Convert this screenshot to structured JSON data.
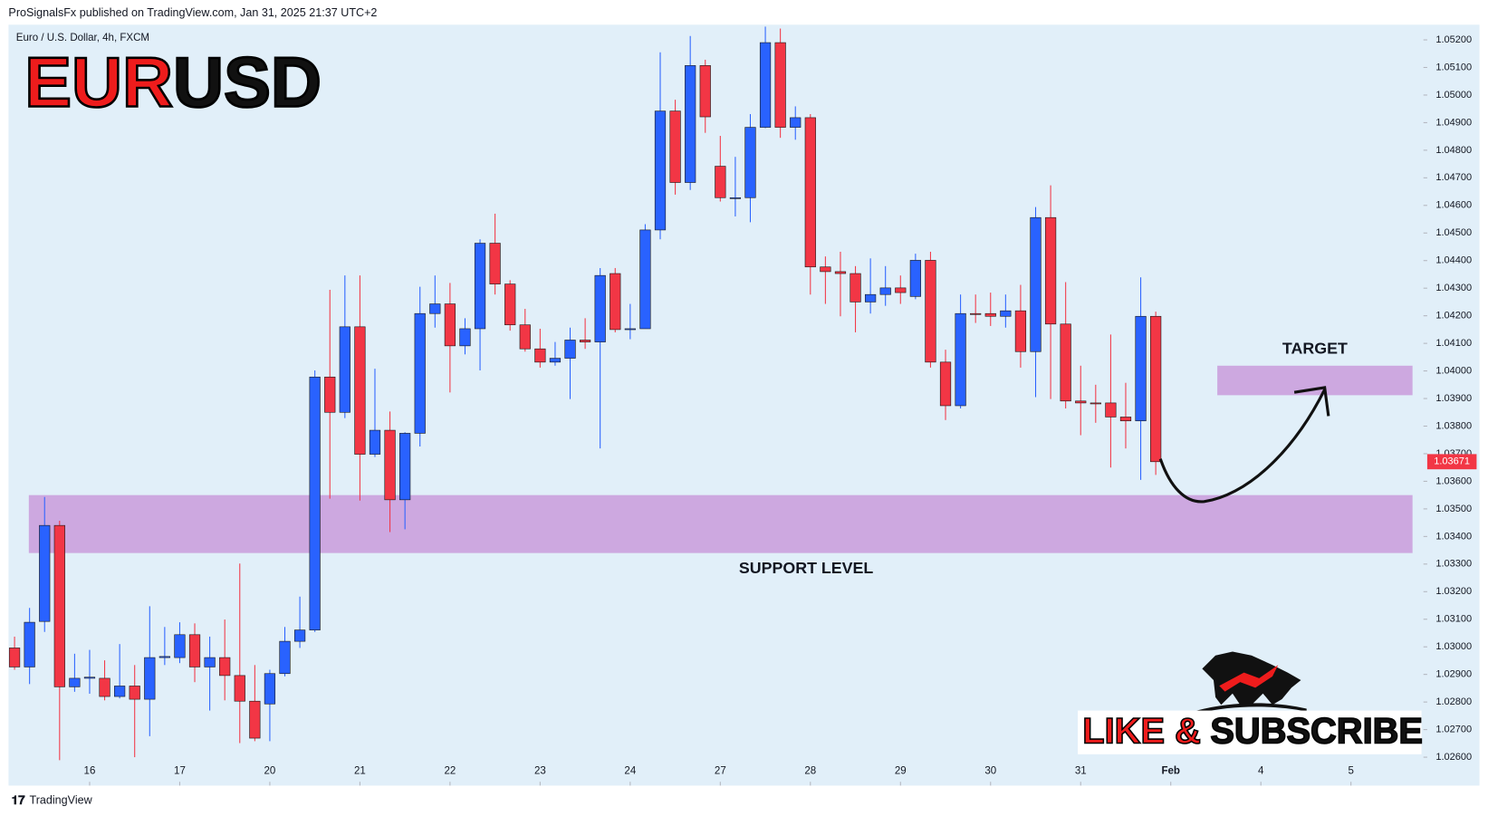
{
  "header": "ProSignalsFx published on TradingView.com, Jan 31, 2025 21:37 UTC+2",
  "logo": {
    "left": "EUR",
    "right": "USD"
  },
  "cta": {
    "left": "LIKE &",
    "right": "SUBSCRIBE"
  },
  "footer": "TradingView",
  "chart_data": {
    "type": "candlestick",
    "title": "Euro / U.S. Dollar, 4h, FXCM",
    "up_color": "#2962ff",
    "down_color": "#f23645",
    "open": [
      1.02996,
      1.02927,
      1.03092,
      1.0344,
      1.02855,
      1.02886,
      1.02886,
      1.0282,
      1.02858,
      1.0281,
      1.02961,
      1.02961,
      1.03044,
      1.02927,
      1.02961,
      1.02896,
      1.02803,
      1.02793,
      1.02903,
      1.0302,
      1.03061,
      1.03978,
      1.0385,
      1.0416,
      1.03698,
      1.03785,
      1.03533,
      1.03774,
      1.04208,
      1.04243,
      1.04091,
      1.04153,
      1.04463,
      1.04315,
      1.04167,
      1.0408,
      1.04032,
      1.04046,
      1.04112,
      1.04105,
      1.04353,
      1.0415,
      1.04153,
      1.04511,
      1.04942,
      1.04683,
      1.05107,
      1.04742,
      1.04625,
      1.04628,
      1.04883,
      1.0519,
      1.04883,
      1.04918,
      1.04377,
      1.0436,
      1.04353,
      1.0425,
      1.04277,
      1.04301,
      1.0427,
      1.04401,
      1.04032,
      1.03874,
      1.04208,
      1.04208,
      1.04198,
      1.04218,
      1.0407,
      1.04556,
      1.0417,
      1.03891,
      1.03884,
      1.03884,
      1.03833,
      1.03819,
      1.04198
    ],
    "high": [
      1.03037,
      1.03141,
      1.03543,
      1.03457,
      1.02975,
      1.02989,
      1.02951,
      1.0301,
      1.02934,
      1.03147,
      1.03072,
      1.03089,
      1.03085,
      1.03037,
      1.03099,
      1.03302,
      1.02934,
      1.02917,
      1.03072,
      1.03182,
      1.04002,
      1.04294,
      1.04346,
      1.04346,
      1.04008,
      1.03853,
      1.03778,
      1.04305,
      1.04346,
      1.04319,
      1.04191,
      1.04477,
      1.0457,
      1.04329,
      1.04225,
      1.04153,
      1.04105,
      1.04157,
      1.04191,
      1.04373,
      1.04373,
      1.04243,
      1.04532,
      1.05155,
      1.04983,
      1.05214,
      1.05128,
      1.04852,
      1.04776,
      1.04931,
      1.05248,
      1.05241,
      1.04959,
      1.04931,
      1.04415,
      1.04432,
      1.0438,
      1.04408,
      1.0438,
      1.04346,
      1.04425,
      1.04432,
      1.04077,
      1.04277,
      1.04277,
      1.04284,
      1.04277,
      1.04312,
      1.04594,
      1.04673,
      1.04322,
      1.04019,
      1.0395,
      1.04132,
      1.03957,
      1.04339,
      1.04215
    ],
    "low": [
      1.02917,
      1.02865,
      1.03054,
      1.02589,
      1.02837,
      1.0283,
      1.02806,
      1.02813,
      1.026,
      1.02676,
      1.02934,
      1.02941,
      1.02872,
      1.02769,
      1.02806,
      1.02651,
      1.02658,
      1.02658,
      1.02893,
      1.02996,
      1.03054,
      1.03537,
      1.03829,
      1.0353,
      1.03688,
      1.03416,
      1.03426,
      1.03726,
      1.04157,
      1.03922,
      1.0406,
      1.04002,
      1.04277,
      1.04146,
      1.0407,
      1.04012,
      1.04019,
      1.03898,
      1.0408,
      1.03719,
      1.0414,
      1.04115,
      1.04153,
      1.04477,
      1.04639,
      1.04656,
      1.04863,
      1.04614,
      1.0456,
      1.04539,
      1.0488,
      1.04845,
      1.04838,
      1.04277,
      1.04243,
      1.04198,
      1.0414,
      1.04208,
      1.04236,
      1.04243,
      1.0426,
      1.04012,
      1.03822,
      1.03864,
      1.04174,
      1.04163,
      1.04157,
      1.04012,
      1.03905,
      1.03898,
      1.03864,
      1.03767,
      1.03812,
      1.0365,
      1.03719,
      1.03605,
      1.03623
    ],
    "close": [
      1.02927,
      1.03089,
      1.0344,
      1.02855,
      1.02886,
      1.0289,
      1.0282,
      1.02858,
      1.0281,
      1.02961,
      1.02965,
      1.03044,
      1.02927,
      1.02961,
      1.02896,
      1.02803,
      1.02669,
      1.02903,
      1.0302,
      1.03061,
      1.03978,
      1.0385,
      1.0416,
      1.03698,
      1.03785,
      1.03533,
      1.03774,
      1.04208,
      1.04243,
      1.04091,
      1.04153,
      1.04463,
      1.04315,
      1.04167,
      1.0408,
      1.04032,
      1.04046,
      1.04112,
      1.04105,
      1.04346,
      1.0415,
      1.04153,
      1.04511,
      1.04942,
      1.04683,
      1.05107,
      1.04921,
      1.04628,
      1.04628,
      1.04883,
      1.0519,
      1.04883,
      1.04918,
      1.04377,
      1.0436,
      1.04353,
      1.0425,
      1.04277,
      1.04301,
      1.04284,
      1.04401,
      1.04032,
      1.03874,
      1.04208,
      1.04207,
      1.04198,
      1.04218,
      1.0407,
      1.04556,
      1.0417,
      1.03891,
      1.03884,
      1.03881,
      1.03833,
      1.03819,
      1.04198,
      1.03671
    ],
    "xlim": [
      -0.4,
      93.7
    ],
    "xticks": [
      {
        "value": 5,
        "label": "16"
      },
      {
        "value": 11,
        "label": "17"
      },
      {
        "value": 17,
        "label": "20"
      },
      {
        "value": 23,
        "label": "21"
      },
      {
        "value": 29,
        "label": "22"
      },
      {
        "value": 35,
        "label": "23"
      },
      {
        "value": 41,
        "label": "24"
      },
      {
        "value": 47,
        "label": "27"
      },
      {
        "value": 53,
        "label": "28"
      },
      {
        "value": 59,
        "label": "29"
      },
      {
        "value": 65,
        "label": "30"
      },
      {
        "value": 71,
        "label": "31"
      },
      {
        "value": 77,
        "label": "Feb"
      },
      {
        "value": 83,
        "label": "4"
      },
      {
        "value": 89,
        "label": "5"
      }
    ],
    "ylim": [
      1.02497,
      1.05255
    ],
    "yticks": [
      {
        "value": 1.026,
        "label": "1.02600"
      },
      {
        "value": 1.027,
        "label": "1.02700"
      },
      {
        "value": 1.028,
        "label": "1.02800"
      },
      {
        "value": 1.029,
        "label": "1.02900"
      },
      {
        "value": 1.03,
        "label": "1.03000"
      },
      {
        "value": 1.031,
        "label": "1.03100"
      },
      {
        "value": 1.032,
        "label": "1.03200"
      },
      {
        "value": 1.033,
        "label": "1.03300"
      },
      {
        "value": 1.034,
        "label": "1.03400"
      },
      {
        "value": 1.035,
        "label": "1.03500"
      },
      {
        "value": 1.036,
        "label": "1.03600"
      },
      {
        "value": 1.037,
        "label": "1.03700"
      },
      {
        "value": 1.038,
        "label": "1.03800"
      },
      {
        "value": 1.039,
        "label": "1.03900"
      },
      {
        "value": 1.04,
        "label": "1.04000"
      },
      {
        "value": 1.041,
        "label": "1.04100"
      },
      {
        "value": 1.042,
        "label": "1.04200"
      },
      {
        "value": 1.043,
        "label": "1.04300"
      },
      {
        "value": 1.044,
        "label": "1.04400"
      },
      {
        "value": 1.045,
        "label": "1.04500"
      },
      {
        "value": 1.046,
        "label": "1.04600"
      },
      {
        "value": 1.047,
        "label": "1.04700"
      },
      {
        "value": 1.048,
        "label": "1.04800"
      },
      {
        "value": 1.049,
        "label": "1.04900"
      },
      {
        "value": 1.05,
        "label": "1.05000"
      },
      {
        "value": 1.051,
        "label": "1.05100"
      },
      {
        "value": 1.052,
        "label": "1.05200"
      }
    ],
    "grid": false,
    "last_price": 1.03671,
    "zones": [
      {
        "label": "SUPPORT LEVEL",
        "top": 1.0355,
        "bottom": 1.0334,
        "start": 0.95,
        "end": 93.1,
        "color": "#cda8e0",
        "label_position": "below"
      },
      {
        "label": "TARGET",
        "top": 1.04019,
        "bottom": 1.03912,
        "start": 80.1,
        "end": 93.1,
        "color": "#cda8e0",
        "label_position": "above"
      }
    ]
  }
}
